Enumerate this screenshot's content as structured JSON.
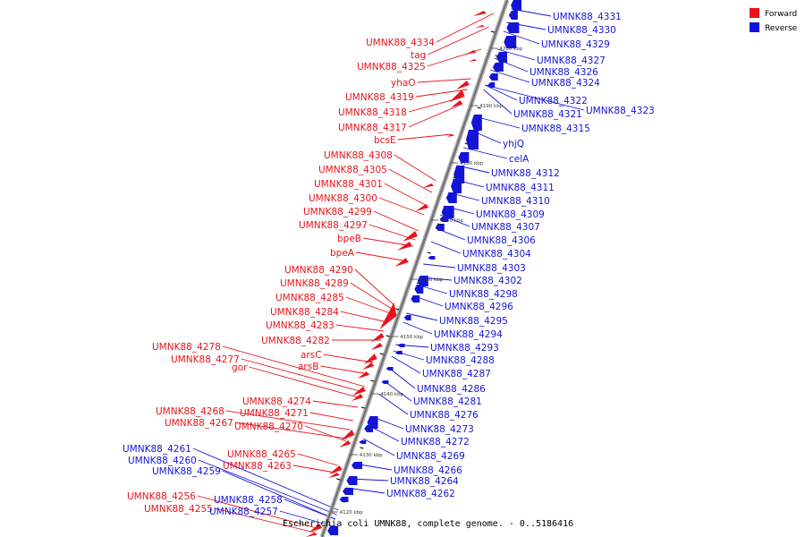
{
  "colors": {
    "forward": "#e8141c",
    "reverse": "#1414d8",
    "backbone": "#8a8a8a"
  },
  "legend": [
    {
      "label": "Forward",
      "color": "#e8141c"
    },
    {
      "label": "Reverse",
      "color": "#1414d8"
    }
  ],
  "caption": "Escherichia coli UMNK88, complete genome. - 0..5186416",
  "ticks": [
    "4120 kbp",
    "4130 kbp",
    "4140 kbp",
    "4150 kbp",
    "4160 kbp",
    "4170 kbp",
    "4180 kbp",
    "4190 kbp",
    "4200 kbp"
  ],
  "forward_labels": [
    "UMNK88_4334",
    "tag",
    "UMNK88_4325",
    "yhaO",
    "UMNK88_4319",
    "UMNK88_4318",
    "UMNK88_4317",
    "bcsE",
    "UMNK88_4308",
    "UMNK88_4305",
    "UMNK88_4301",
    "UMNK88_4300",
    "UMNK88_4299",
    "UMNK88_4297",
    "bpeB",
    "bpeA",
    "UMNK88_4290",
    "UMNK88_4289",
    "UMNK88_4285",
    "UMNK88_4284",
    "UMNK88_4283",
    "UMNK88_4282",
    "UMNK88_4278",
    "UMNK88_4277",
    "arsC",
    "gor",
    "arsB",
    "UMNK88_4274",
    "UMNK88_4271",
    "UMNK88_4268",
    "UMNK88_4267",
    "UMNK88_4270",
    "UMNK88_4265",
    "UMNK88_4263",
    "UMNK88_4256",
    "UMNK88_4255"
  ],
  "reverse_labels": [
    "UMNK88_4331",
    "UMNK88_4330",
    "UMNK88_4329",
    "UMNK88_4327",
    "UMNK88_4326",
    "UMNK88_4324",
    "UMNK88_4322",
    "UMNK88_4323",
    "UMNK88_4321",
    "UMNK88_4315",
    "yhjQ",
    "celA",
    "UMNK88_4312",
    "UMNK88_4311",
    "UMNK88_4310",
    "UMNK88_4309",
    "UMNK88_4307",
    "UMNK88_4306",
    "UMNK88_4304",
    "UMNK88_4303",
    "UMNK88_4302",
    "UMNK88_4298",
    "UMNK88_4296",
    "UMNK88_4295",
    "UMNK88_4294",
    "UMNK88_4293",
    "UMNK88_4288",
    "UMNK88_4287",
    "UMNK88_4286",
    "UMNK88_4281",
    "UMNK88_4276",
    "UMNK88_4273",
    "UMNK88_4272",
    "UMNK88_4269",
    "UMNK88_4266",
    "UMNK88_4264",
    "UMNK88_4262",
    "UMNK88_4261",
    "UMNK88_4260",
    "UMNK88_4259",
    "UMNK88_4258",
    "UMNK88_4257"
  ]
}
